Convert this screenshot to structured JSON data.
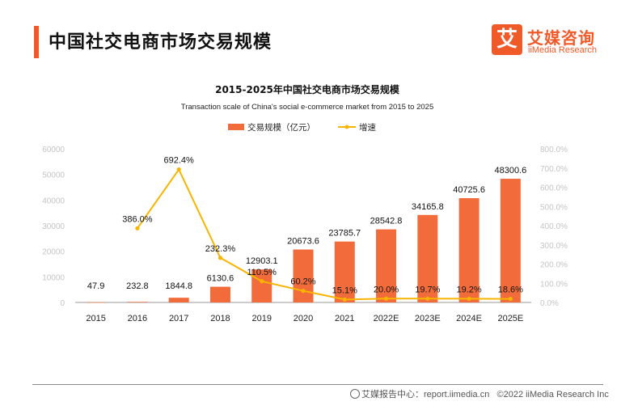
{
  "header": {
    "title": "中国社交电商市场交易规模",
    "logo_text": "艾媒咨询",
    "logo_sub": "iiMedia Research",
    "logo_glyph": "艾"
  },
  "footer": {
    "source": "艾媒报告中心：report.iimedia.cn",
    "copyright": "©2022  iiMedia Research  Inc"
  },
  "colors": {
    "accent": "#f05a28",
    "bar": "#f26b3a",
    "line": "#f7b500"
  },
  "chart_data": {
    "type": "bar",
    "title": "2015-2025年中国社交电商市场交易规模",
    "subtitle": "Transaction scale of China's social e-commerce market from 2015 to 2025",
    "categories": [
      "2015",
      "2016",
      "2017",
      "2018",
      "2019",
      "2020",
      "2021",
      "2022E",
      "2023E",
      "2024E",
      "2025E"
    ],
    "series": [
      {
        "name": "交易规模（亿元）",
        "type": "bar",
        "axis": "left",
        "values": [
          47.9,
          232.8,
          1844.8,
          6130.6,
          12903.1,
          20673.6,
          23785.7,
          28542.8,
          34165.8,
          40725.6,
          48300.6
        ],
        "labels": [
          "47.9",
          "232.8",
          "1844.8",
          "6130.6",
          "12903.1",
          "20673.6",
          "23785.7",
          "28542.8",
          "34165.8",
          "40725.6",
          "48300.6"
        ]
      },
      {
        "name": "增速",
        "type": "line",
        "axis": "right",
        "values": [
          null,
          386.0,
          692.4,
          232.3,
          110.5,
          60.2,
          15.1,
          20.0,
          19.7,
          19.2,
          18.6
        ],
        "labels": [
          null,
          "386.0%",
          "692.4%",
          "232.3%",
          "110.5%",
          "60.2%",
          "15.1%",
          "20.0%",
          "19.7%",
          "19.2%",
          "18.6%"
        ]
      }
    ],
    "y_left": {
      "lim": [
        0,
        60000
      ],
      "ticks": [
        "0",
        "10000",
        "20000",
        "30000",
        "40000",
        "50000",
        "60000"
      ]
    },
    "y_right": {
      "lim": [
        0,
        800
      ],
      "ticks": [
        "0.0%",
        "100.0%",
        "200.0%",
        "300.0%",
        "400.0%",
        "500.0%",
        "600.0%",
        "700.0%",
        "800.0%"
      ]
    },
    "legend": "top-center",
    "grid": false
  }
}
